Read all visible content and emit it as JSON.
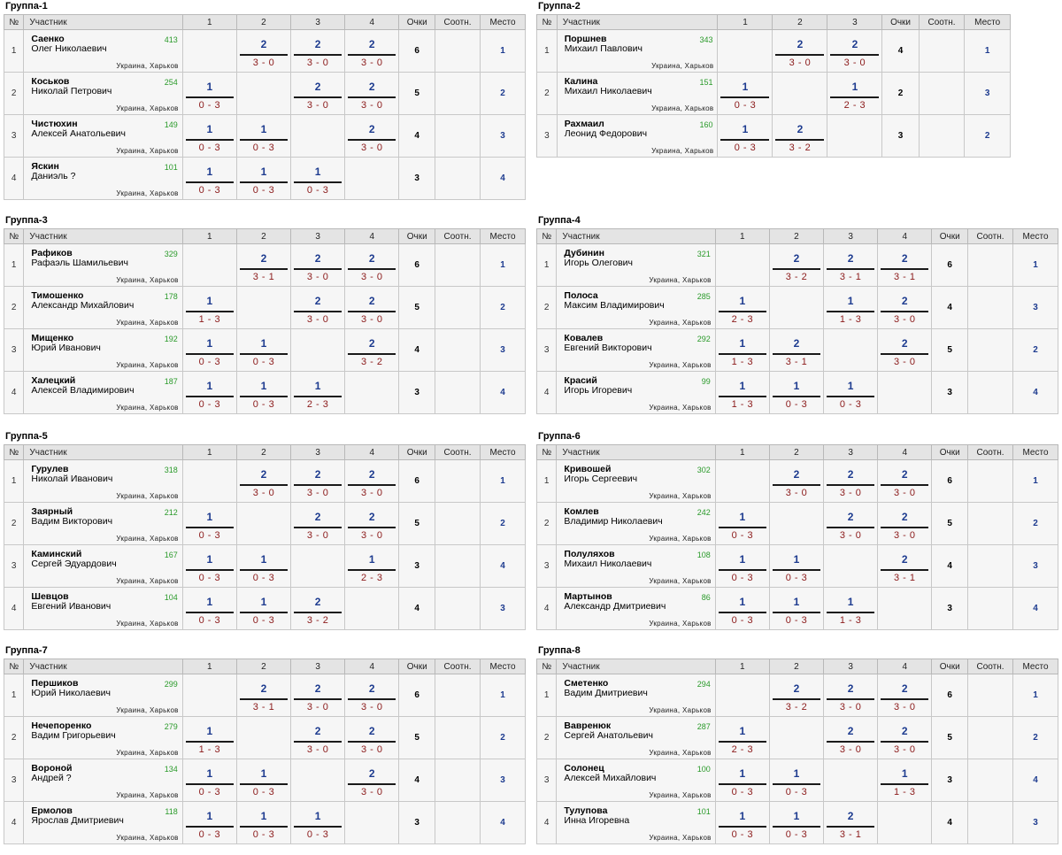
{
  "headers": {
    "num": "№",
    "participant": "Участник",
    "points": "Очки",
    "ratio": "Соотн.",
    "place": "Место"
  },
  "groups": [
    {
      "title": "Группа-1",
      "cols": [
        "1",
        "2",
        "3",
        "4"
      ],
      "rows": [
        {
          "n": "1",
          "surname": "Саенко",
          "full": "Олег Николаевич",
          "rating": "413",
          "city": "Украина, Харьков",
          "points": "6",
          "place": "1",
          "matches": [
            null,
            {
              "p": "2",
              "s": "3 - 0"
            },
            {
              "p": "2",
              "s": "3 - 0"
            },
            {
              "p": "2",
              "s": "3 - 0"
            }
          ]
        },
        {
          "n": "2",
          "surname": "Коськов",
          "full": "Николай Петрович",
          "rating": "254",
          "city": "Украина, Харьков",
          "points": "5",
          "place": "2",
          "matches": [
            {
              "p": "1",
              "s": "0 - 3"
            },
            null,
            {
              "p": "2",
              "s": "3 - 0"
            },
            {
              "p": "2",
              "s": "3 - 0"
            }
          ]
        },
        {
          "n": "3",
          "surname": "Чистюхин",
          "full": "Алексей Анатольевич",
          "rating": "149",
          "city": "Украина, Харьков",
          "points": "4",
          "place": "3",
          "matches": [
            {
              "p": "1",
              "s": "0 - 3"
            },
            {
              "p": "1",
              "s": "0 - 3"
            },
            null,
            {
              "p": "2",
              "s": "3 - 0"
            }
          ]
        },
        {
          "n": "4",
          "surname": "Яскин",
          "full": "Даниэль ?",
          "rating": "101",
          "city": "Украина, Харьков",
          "points": "3",
          "place": "4",
          "matches": [
            {
              "p": "1",
              "s": "0 - 3"
            },
            {
              "p": "1",
              "s": "0 - 3"
            },
            {
              "p": "1",
              "s": "0 - 3"
            },
            null
          ]
        }
      ]
    },
    {
      "title": "Группа-2",
      "cols": [
        "1",
        "2",
        "3"
      ],
      "rows": [
        {
          "n": "1",
          "surname": "Поршнев",
          "full": "Михаил Павлович",
          "rating": "343",
          "city": "Украина, Харьков",
          "points": "4",
          "place": "1",
          "matches": [
            null,
            {
              "p": "2",
              "s": "3 - 0"
            },
            {
              "p": "2",
              "s": "3 - 0"
            }
          ]
        },
        {
          "n": "2",
          "surname": "Калина",
          "full": "Михаил Николаевич",
          "rating": "151",
          "city": "Украина, Харьков",
          "points": "2",
          "place": "3",
          "matches": [
            {
              "p": "1",
              "s": "0 - 3"
            },
            null,
            {
              "p": "1",
              "s": "2 - 3"
            }
          ]
        },
        {
          "n": "3",
          "surname": "Рахмаил",
          "full": "Леонид Федорович",
          "rating": "160",
          "city": "Украина, Харьков",
          "points": "3",
          "place": "2",
          "matches": [
            {
              "p": "1",
              "s": "0 - 3"
            },
            {
              "p": "2",
              "s": "3 - 2"
            },
            null
          ]
        }
      ]
    },
    {
      "title": "Группа-3",
      "cols": [
        "1",
        "2",
        "3",
        "4"
      ],
      "rows": [
        {
          "n": "1",
          "surname": "Рафиков",
          "full": "Рафаэль Шамильевич",
          "rating": "329",
          "city": "Украина, Харьков",
          "points": "6",
          "place": "1",
          "matches": [
            null,
            {
              "p": "2",
              "s": "3 - 1"
            },
            {
              "p": "2",
              "s": "3 - 0"
            },
            {
              "p": "2",
              "s": "3 - 0"
            }
          ]
        },
        {
          "n": "2",
          "surname": "Тимошенко",
          "full": "Александр Михайлович",
          "rating": "178",
          "city": "Украина, Харьков",
          "points": "5",
          "place": "2",
          "matches": [
            {
              "p": "1",
              "s": "1 - 3"
            },
            null,
            {
              "p": "2",
              "s": "3 - 0"
            },
            {
              "p": "2",
              "s": "3 - 0"
            }
          ]
        },
        {
          "n": "3",
          "surname": "Мищенко",
          "full": "Юрий Иванович",
          "rating": "192",
          "city": "Украина, Харьков",
          "points": "4",
          "place": "3",
          "matches": [
            {
              "p": "1",
              "s": "0 - 3"
            },
            {
              "p": "1",
              "s": "0 - 3"
            },
            null,
            {
              "p": "2",
              "s": "3 - 2"
            }
          ]
        },
        {
          "n": "4",
          "surname": "Халецкий",
          "full": "Алексей Владимирович",
          "rating": "187",
          "city": "Украина, Харьков",
          "points": "3",
          "place": "4",
          "matches": [
            {
              "p": "1",
              "s": "0 - 3"
            },
            {
              "p": "1",
              "s": "0 - 3"
            },
            {
              "p": "1",
              "s": "2 - 3"
            },
            null
          ]
        }
      ]
    },
    {
      "title": "Группа-4",
      "cols": [
        "1",
        "2",
        "3",
        "4"
      ],
      "rows": [
        {
          "n": "1",
          "surname": "Дубинин",
          "full": "Игорь Олегович",
          "rating": "321",
          "city": "Украина, Харьков",
          "points": "6",
          "place": "1",
          "matches": [
            null,
            {
              "p": "2",
              "s": "3 - 2"
            },
            {
              "p": "2",
              "s": "3 - 1"
            },
            {
              "p": "2",
              "s": "3 - 1"
            }
          ]
        },
        {
          "n": "2",
          "surname": "Полоса",
          "full": "Максим Владимирович",
          "rating": "285",
          "city": "Украина, Харьков",
          "points": "4",
          "place": "3",
          "matches": [
            {
              "p": "1",
              "s": "2 - 3"
            },
            null,
            {
              "p": "1",
              "s": "1 - 3"
            },
            {
              "p": "2",
              "s": "3 - 0"
            }
          ]
        },
        {
          "n": "3",
          "surname": "Ковалев",
          "full": "Евгений Викторович",
          "rating": "292",
          "city": "Украина, Харьков",
          "points": "5",
          "place": "2",
          "matches": [
            {
              "p": "1",
              "s": "1 - 3"
            },
            {
              "p": "2",
              "s": "3 - 1"
            },
            null,
            {
              "p": "2",
              "s": "3 - 0"
            }
          ]
        },
        {
          "n": "4",
          "surname": "Красий",
          "full": "Игорь Игоревич",
          "rating": "99",
          "city": "Украина, Харьков",
          "points": "3",
          "place": "4",
          "matches": [
            {
              "p": "1",
              "s": "1 - 3"
            },
            {
              "p": "1",
              "s": "0 - 3"
            },
            {
              "p": "1",
              "s": "0 - 3"
            },
            null
          ]
        }
      ]
    },
    {
      "title": "Группа-5",
      "cols": [
        "1",
        "2",
        "3",
        "4"
      ],
      "rows": [
        {
          "n": "1",
          "surname": "Гурулев",
          "full": "Николай Иванович",
          "rating": "318",
          "city": "Украина, Харьков",
          "points": "6",
          "place": "1",
          "matches": [
            null,
            {
              "p": "2",
              "s": "3 - 0"
            },
            {
              "p": "2",
              "s": "3 - 0"
            },
            {
              "p": "2",
              "s": "3 - 0"
            }
          ]
        },
        {
          "n": "2",
          "surname": "Заярный",
          "full": "Вадим Викторович",
          "rating": "212",
          "city": "Украина, Харьков",
          "points": "5",
          "place": "2",
          "matches": [
            {
              "p": "1",
              "s": "0 - 3"
            },
            null,
            {
              "p": "2",
              "s": "3 - 0"
            },
            {
              "p": "2",
              "s": "3 - 0"
            }
          ]
        },
        {
          "n": "3",
          "surname": "Каминский",
          "full": "Сергей Эдуардович",
          "rating": "167",
          "city": "Украина, Харьков",
          "points": "3",
          "place": "4",
          "matches": [
            {
              "p": "1",
              "s": "0 - 3"
            },
            {
              "p": "1",
              "s": "0 - 3"
            },
            null,
            {
              "p": "1",
              "s": "2 - 3"
            }
          ]
        },
        {
          "n": "4",
          "surname": "Шевцов",
          "full": "Евгений Иванович",
          "rating": "104",
          "city": "Украина, Харьков",
          "points": "4",
          "place": "3",
          "matches": [
            {
              "p": "1",
              "s": "0 - 3"
            },
            {
              "p": "1",
              "s": "0 - 3"
            },
            {
              "p": "2",
              "s": "3 - 2"
            },
            null
          ]
        }
      ]
    },
    {
      "title": "Группа-6",
      "cols": [
        "1",
        "2",
        "3",
        "4"
      ],
      "rows": [
        {
          "n": "1",
          "surname": "Кривошей",
          "full": "Игорь Сергеевич",
          "rating": "302",
          "city": "Украина, Харьков",
          "points": "6",
          "place": "1",
          "matches": [
            null,
            {
              "p": "2",
              "s": "3 - 0"
            },
            {
              "p": "2",
              "s": "3 - 0"
            },
            {
              "p": "2",
              "s": "3 - 0"
            }
          ]
        },
        {
          "n": "2",
          "surname": "Комлев",
          "full": "Владимир Николаевич",
          "rating": "242",
          "city": "Украина, Харьков",
          "points": "5",
          "place": "2",
          "matches": [
            {
              "p": "1",
              "s": "0 - 3"
            },
            null,
            {
              "p": "2",
              "s": "3 - 0"
            },
            {
              "p": "2",
              "s": "3 - 0"
            }
          ]
        },
        {
          "n": "3",
          "surname": "Полуляхов",
          "full": "Михаил Николаевич",
          "rating": "108",
          "city": "Украина, Харьков",
          "points": "4",
          "place": "3",
          "matches": [
            {
              "p": "1",
              "s": "0 - 3"
            },
            {
              "p": "1",
              "s": "0 - 3"
            },
            null,
            {
              "p": "2",
              "s": "3 - 1"
            }
          ]
        },
        {
          "n": "4",
          "surname": "Мартынов",
          "full": "Александр Дмитриевич",
          "rating": "86",
          "city": "Украина, Харьков",
          "points": "3",
          "place": "4",
          "matches": [
            {
              "p": "1",
              "s": "0 - 3"
            },
            {
              "p": "1",
              "s": "0 - 3"
            },
            {
              "p": "1",
              "s": "1 - 3"
            },
            null
          ]
        }
      ]
    },
    {
      "title": "Группа-7",
      "cols": [
        "1",
        "2",
        "3",
        "4"
      ],
      "rows": [
        {
          "n": "1",
          "surname": "Першиков",
          "full": "Юрий Николаевич",
          "rating": "299",
          "city": "Украина, Харьков",
          "points": "6",
          "place": "1",
          "matches": [
            null,
            {
              "p": "2",
              "s": "3 - 1"
            },
            {
              "p": "2",
              "s": "3 - 0"
            },
            {
              "p": "2",
              "s": "3 - 0"
            }
          ]
        },
        {
          "n": "2",
          "surname": "Нечепоренко",
          "full": "Вадим Григорьевич",
          "rating": "279",
          "city": "Украина, Харьков",
          "points": "5",
          "place": "2",
          "matches": [
            {
              "p": "1",
              "s": "1 - 3"
            },
            null,
            {
              "p": "2",
              "s": "3 - 0"
            },
            {
              "p": "2",
              "s": "3 - 0"
            }
          ]
        },
        {
          "n": "3",
          "surname": "Вороной",
          "full": "Андрей ?",
          "rating": "134",
          "city": "Украина, Харьков",
          "points": "4",
          "place": "3",
          "matches": [
            {
              "p": "1",
              "s": "0 - 3"
            },
            {
              "p": "1",
              "s": "0 - 3"
            },
            null,
            {
              "p": "2",
              "s": "3 - 0"
            }
          ]
        },
        {
          "n": "4",
          "surname": "Ермолов",
          "full": "Ярослав Дмитриевич",
          "rating": "118",
          "city": "Украина, Харьков",
          "points": "3",
          "place": "4",
          "matches": [
            {
              "p": "1",
              "s": "0 - 3"
            },
            {
              "p": "1",
              "s": "0 - 3"
            },
            {
              "p": "1",
              "s": "0 - 3"
            },
            null
          ]
        }
      ]
    },
    {
      "title": "Группа-8",
      "cols": [
        "1",
        "2",
        "3",
        "4"
      ],
      "rows": [
        {
          "n": "1",
          "surname": "Сметенко",
          "full": "Вадим Дмитриевич",
          "rating": "294",
          "city": "Украина, Харьков",
          "points": "6",
          "place": "1",
          "matches": [
            null,
            {
              "p": "2",
              "s": "3 - 2"
            },
            {
              "p": "2",
              "s": "3 - 0"
            },
            {
              "p": "2",
              "s": "3 - 0"
            }
          ]
        },
        {
          "n": "2",
          "surname": "Вавренюк",
          "full": "Сергей Анатольевич",
          "rating": "287",
          "city": "Украина, Харьков",
          "points": "5",
          "place": "2",
          "matches": [
            {
              "p": "1",
              "s": "2 - 3"
            },
            null,
            {
              "p": "2",
              "s": "3 - 0"
            },
            {
              "p": "2",
              "s": "3 - 0"
            }
          ]
        },
        {
          "n": "3",
          "surname": "Солонец",
          "full": "Алексей Михайлович",
          "rating": "100",
          "city": "Украина, Харьков",
          "points": "3",
          "place": "4",
          "matches": [
            {
              "p": "1",
              "s": "0 - 3"
            },
            {
              "p": "1",
              "s": "0 - 3"
            },
            null,
            {
              "p": "1",
              "s": "1 - 3"
            }
          ]
        },
        {
          "n": "4",
          "surname": "Тулупова",
          "full": "Инна Игоревна",
          "rating": "101",
          "city": "Украина, Харьков",
          "points": "4",
          "place": "3",
          "matches": [
            {
              "p": "1",
              "s": "0 - 3"
            },
            {
              "p": "1",
              "s": "0 - 3"
            },
            {
              "p": "2",
              "s": "3 - 1"
            },
            null
          ]
        }
      ]
    }
  ]
}
